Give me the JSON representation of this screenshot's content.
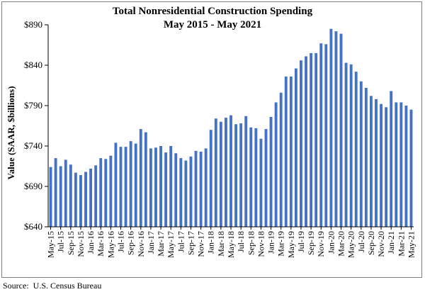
{
  "chart_data": {
    "type": "bar",
    "title": "Total Nonresidential Construction Spending",
    "subtitle": "May 2015 - May 2021",
    "ylabel": "Value (SAAR, $billions)",
    "xlabel": "",
    "ylim": [
      640,
      890
    ],
    "yticks": [
      "$640",
      "$690",
      "$740",
      "$790",
      "$840",
      "$890"
    ],
    "ytick_values": [
      640,
      690,
      740,
      790,
      840,
      890
    ],
    "grid": false,
    "legend": "none",
    "bar_color": "#4472c4",
    "categories": [
      "May-15",
      "Jun-15",
      "Jul-15",
      "Aug-15",
      "Sep-15",
      "Oct-15",
      "Nov-15",
      "Dec-15",
      "Jan-16",
      "Feb-16",
      "Mar-16",
      "Apr-16",
      "May-16",
      "Jun-16",
      "Jul-16",
      "Aug-16",
      "Sep-16",
      "Oct-16",
      "Nov-16",
      "Dec-16",
      "Jan-17",
      "Feb-17",
      "Mar-17",
      "Apr-17",
      "May-17",
      "Jun-17",
      "Jul-17",
      "Aug-17",
      "Sep-17",
      "Oct-17",
      "Nov-17",
      "Dec-17",
      "Jan-18",
      "Feb-18",
      "Mar-18",
      "Apr-18",
      "May-18",
      "Jun-18",
      "Jul-18",
      "Aug-18",
      "Sep-18",
      "Oct-18",
      "Nov-18",
      "Dec-18",
      "Jan-19",
      "Feb-19",
      "Mar-19",
      "Apr-19",
      "May-19",
      "Jun-19",
      "Jul-19",
      "Aug-19",
      "Sep-19",
      "Oct-19",
      "Nov-19",
      "Dec-19",
      "Jan-20",
      "Feb-20",
      "Mar-20",
      "Apr-20",
      "May-20",
      "Jun-20",
      "Jul-20",
      "Aug-20",
      "Sep-20",
      "Oct-20",
      "Nov-20",
      "Dec-20",
      "Jan-21",
      "Feb-21",
      "Mar-21",
      "Apr-21",
      "May-21"
    ],
    "xtick_labels": [
      "May-15",
      "Jul-15",
      "Sep-15",
      "Nov-15",
      "Jan-16",
      "Mar-16",
      "May-16",
      "Jul-16",
      "Sep-16",
      "Nov-16",
      "Jan-17",
      "Mar-17",
      "May-17",
      "Jul-17",
      "Sep-17",
      "Nov-17",
      "Jan-18",
      "Mar-18",
      "May-18",
      "Jul-18",
      "Sep-18",
      "Nov-18",
      "Jan-19",
      "Mar-19",
      "May-19",
      "Jul-19",
      "Sep-19",
      "Nov-19",
      "Jan-20",
      "Mar-20",
      "May-20",
      "Jul-20",
      "Sep-20",
      "Nov-20",
      "Jan-21",
      "Mar-21",
      "May-21"
    ],
    "values": [
      714,
      725,
      715,
      723,
      717,
      707,
      704,
      708,
      712,
      716,
      725,
      724,
      728,
      744,
      739,
      739,
      746,
      743,
      761,
      757,
      737,
      738,
      740,
      732,
      740,
      731,
      725,
      722,
      727,
      734,
      733,
      737,
      760,
      774,
      770,
      775,
      778,
      767,
      768,
      777,
      763,
      762,
      749,
      761,
      776,
      794,
      806,
      826,
      826,
      836,
      846,
      851,
      855,
      855,
      867,
      866,
      885,
      882,
      879,
      843,
      841,
      832,
      820,
      812,
      802,
      798,
      792,
      788,
      808,
      794,
      794,
      790,
      785
    ]
  },
  "source": "Source:  U.S. Census Bureau"
}
